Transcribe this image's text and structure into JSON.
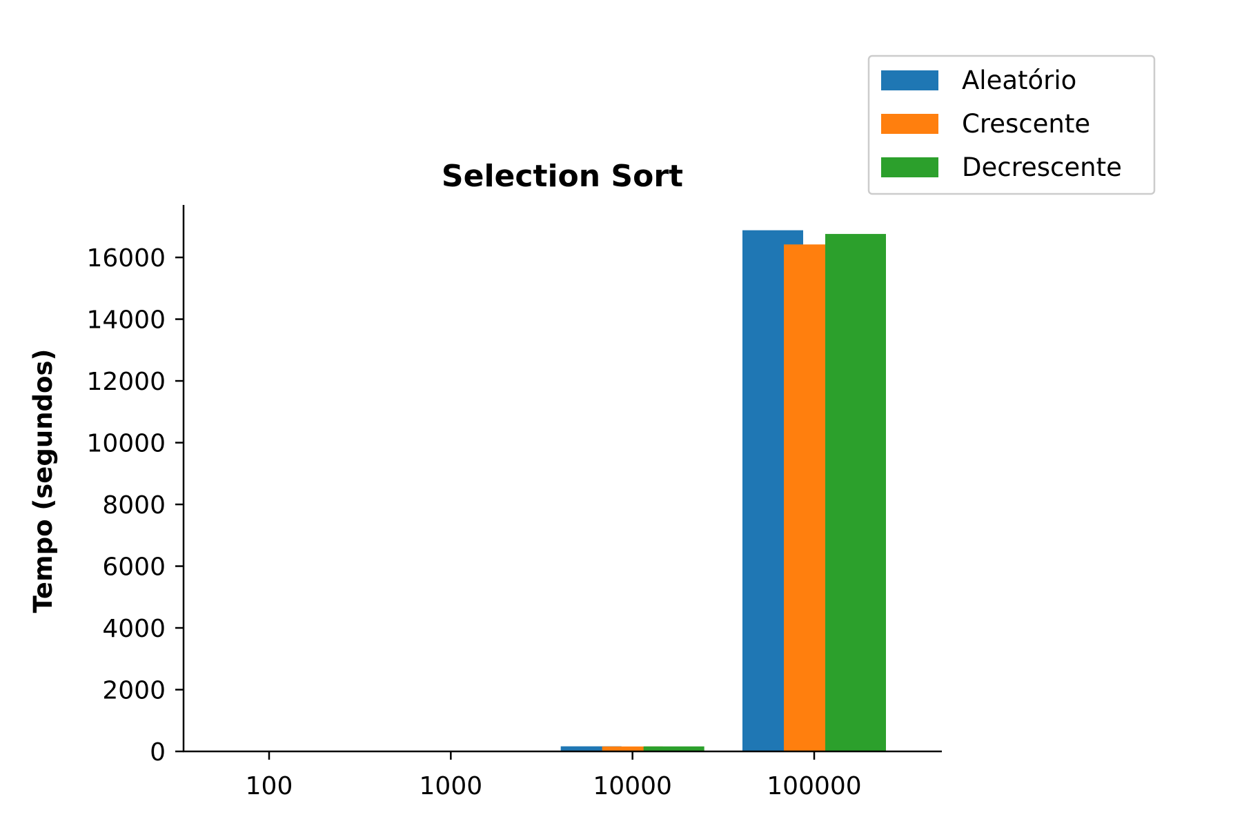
{
  "chart_data": {
    "type": "bar",
    "title": "Selection Sort",
    "xlabel": "",
    "ylabel": "Tempo (segundos)",
    "categories": [
      "100",
      "1000",
      "10000",
      "100000"
    ],
    "series": [
      {
        "name": "Aleatório",
        "color": "#1f77b4",
        "values": [
          0.02,
          1.7,
          165,
          16880
        ]
      },
      {
        "name": "Crescente",
        "color": "#ff7f0e",
        "values": [
          0.01,
          1.6,
          160,
          16420
        ]
      },
      {
        "name": "Decrescente",
        "color": "#2ca02c",
        "values": [
          0.02,
          1.7,
          162,
          16760
        ]
      }
    ],
    "ylim": [
      0,
      17700
    ],
    "yticks": [
      0,
      2000,
      4000,
      6000,
      8000,
      10000,
      12000,
      14000,
      16000
    ],
    "ytick_labels": [
      "0",
      "2000",
      "4000",
      "6000",
      "8000",
      "10000",
      "12000",
      "14000",
      "16000"
    ],
    "grid": false,
    "legend_position": "top-right, outside plot area"
  }
}
